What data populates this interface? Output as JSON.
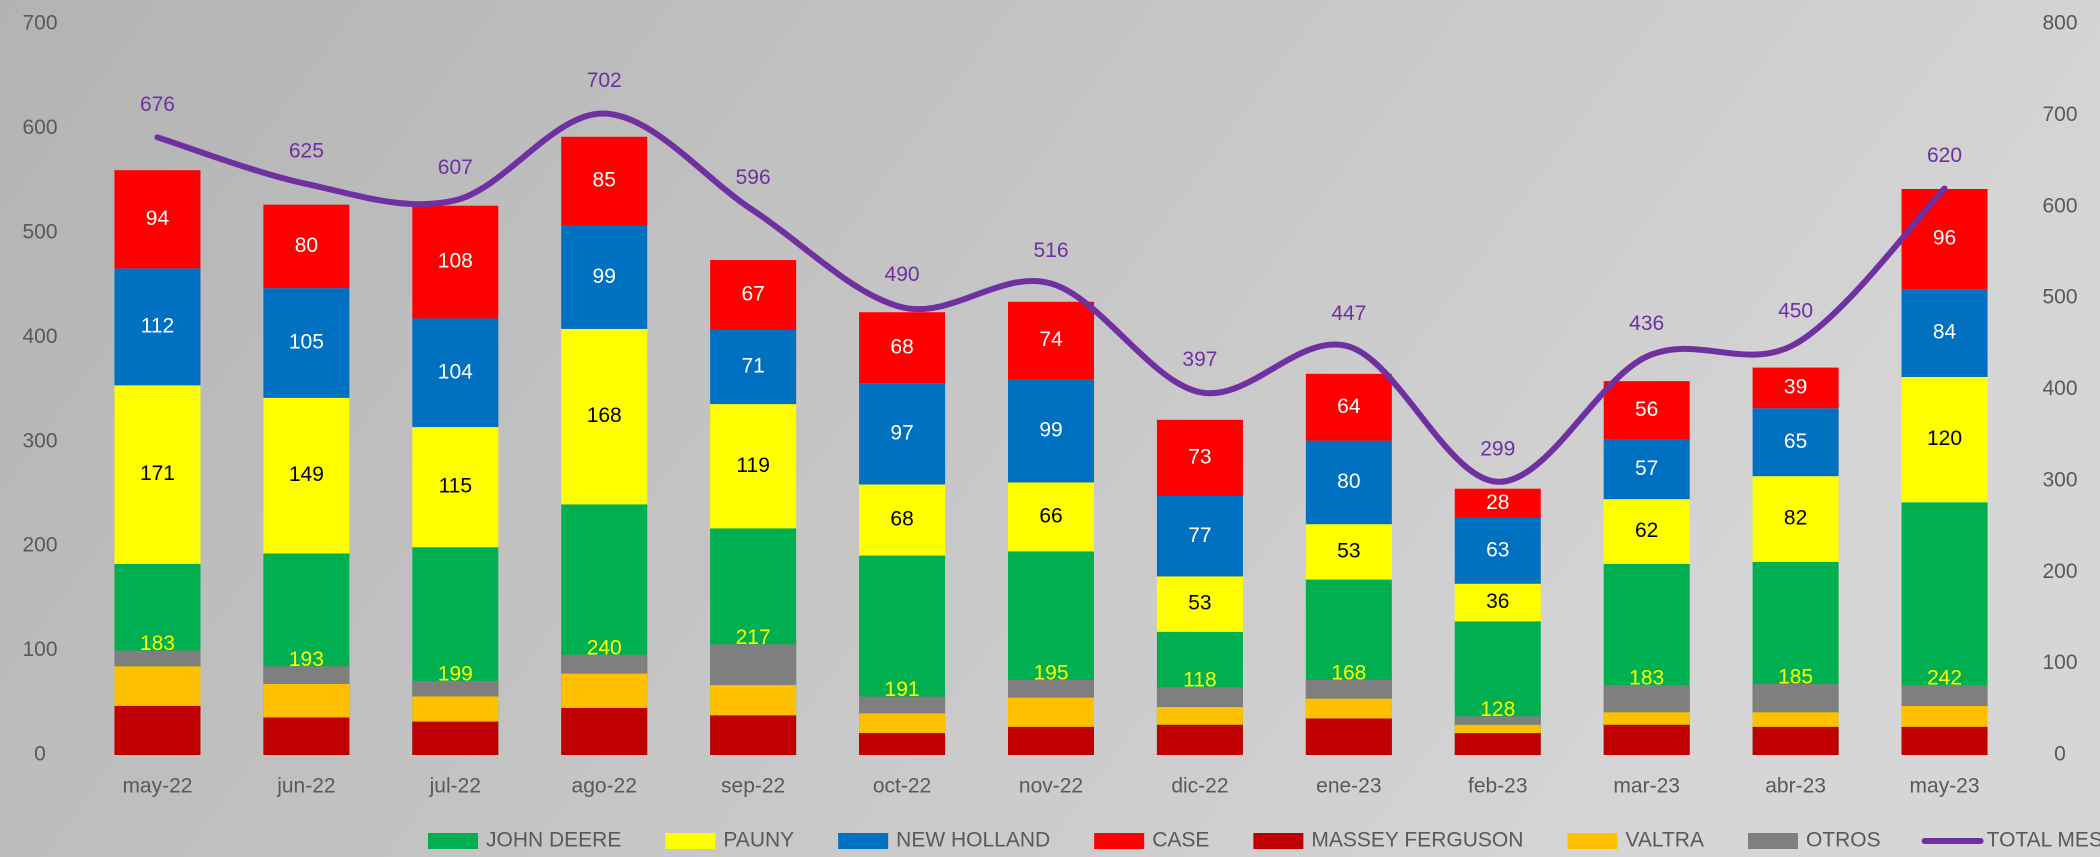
{
  "chart_data": {
    "type": "bar",
    "categories": [
      "may-22",
      "jun-22",
      "jul-22",
      "ago-22",
      "sep-22",
      "oct-22",
      "nov-22",
      "dic-22",
      "ene-23",
      "feb-23",
      "mar-23",
      "abr-23",
      "may-23"
    ],
    "ylim": [
      0,
      700
    ],
    "yticks": [
      0,
      100,
      200,
      300,
      400,
      500,
      600,
      700
    ],
    "y2lim": [
      0,
      800
    ],
    "y2ticks": [
      0,
      100,
      200,
      300,
      400,
      500,
      600,
      700,
      800
    ],
    "legend": "bottom",
    "series": [
      {
        "name": "JOHN DEERE",
        "color": "#00b050",
        "label_color": "#ffff00",
        "values": [
          183,
          193,
          199,
          240,
          217,
          191,
          195,
          118,
          168,
          128,
          183,
          185,
          242
        ]
      },
      {
        "name": "PAUNY",
        "color": "#ffff00",
        "label_color": "#000000",
        "values": [
          171,
          149,
          115,
          168,
          119,
          68,
          66,
          53,
          53,
          36,
          62,
          82,
          120
        ]
      },
      {
        "name": "NEW HOLLAND",
        "color": "#0070c0",
        "label_color": "#ffffff",
        "values": [
          112,
          105,
          104,
          99,
          71,
          97,
          99,
          77,
          80,
          63,
          57,
          65,
          84
        ]
      },
      {
        "name": "CASE",
        "color": "#ff0000",
        "label_color": "#ffffff",
        "values": [
          94,
          80,
          108,
          85,
          67,
          68,
          74,
          73,
          64,
          28,
          56,
          39,
          96
        ]
      },
      {
        "name": "MASSEY FERGUSON",
        "color": "#c00000",
        "overlaid": true,
        "values": [
          47,
          36,
          32,
          45,
          38,
          21,
          27,
          29,
          35,
          21,
          29,
          27,
          27
        ]
      },
      {
        "name": "VALTRA",
        "color": "#ffc000",
        "overlaid": true,
        "values": [
          38,
          32,
          24,
          33,
          29,
          19,
          28,
          17,
          19,
          8,
          12,
          14,
          20
        ]
      },
      {
        "name": "OTROS",
        "color": "#7f7f7f",
        "overlaid": true,
        "values": [
          15,
          17,
          15,
          18,
          39,
          16,
          17,
          19,
          18,
          8,
          26,
          27,
          20
        ]
      },
      {
        "name": "TOTAL MES",
        "type": "line",
        "axis": "y2",
        "color": "#7030a0",
        "label_color": "#7030a0",
        "values": [
          676,
          625,
          607,
          702,
          596,
          490,
          516,
          397,
          447,
          299,
          436,
          450,
          620
        ]
      }
    ]
  }
}
